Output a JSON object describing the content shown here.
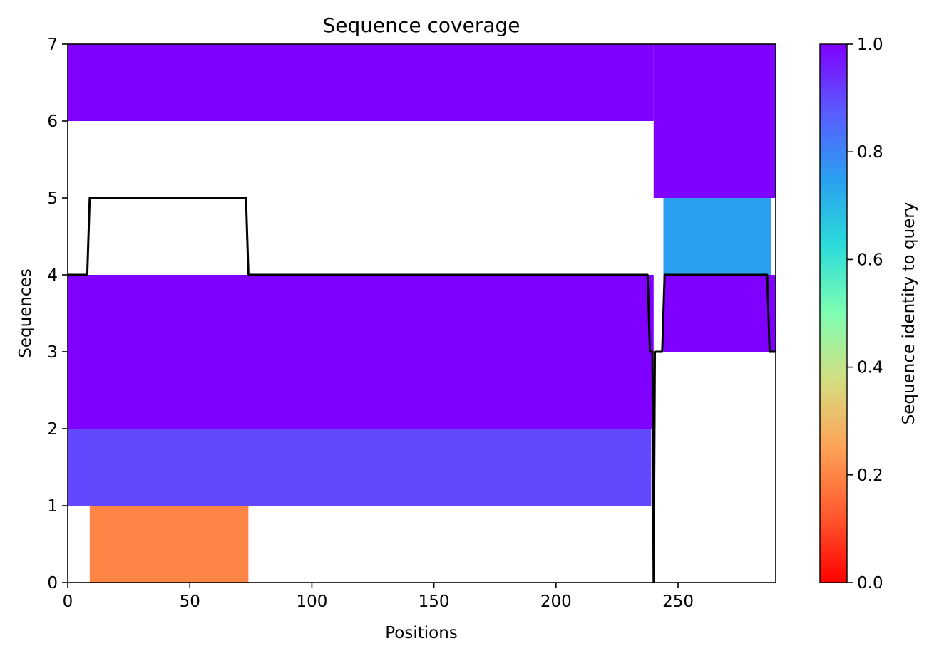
{
  "chart_data": {
    "type": "heatmap",
    "title": "Sequence coverage",
    "xlabel": "Positions",
    "ylabel": "Sequences",
    "xlim": [
      0,
      290
    ],
    "ylim": [
      0,
      7
    ],
    "xticks": [
      "0",
      "50",
      "100",
      "150",
      "200",
      "250"
    ],
    "xtick_values": [
      0,
      50,
      100,
      150,
      200,
      250
    ],
    "yticks": [
      "0",
      "1",
      "2",
      "3",
      "4",
      "5",
      "6",
      "7"
    ],
    "ytick_values": [
      0,
      1,
      2,
      3,
      4,
      5,
      6,
      7
    ],
    "colorbar": {
      "label": "Sequence identity to query",
      "colormap": "rainbow",
      "range": [
        0,
        1
      ],
      "ticks": [
        "0.0",
        "0.2",
        "0.4",
        "0.6",
        "0.8",
        "1.0"
      ],
      "tick_values": [
        0,
        0.2,
        0.4,
        0.6,
        0.8,
        1.0
      ]
    },
    "alignment_blocks": [
      {
        "sequence": 0,
        "start": 9,
        "end": 74,
        "identity": 0.2
      },
      {
        "sequence": 1,
        "start": 0,
        "end": 239,
        "identity": 0.9
      },
      {
        "sequence": 2,
        "start": 0,
        "end": 240,
        "identity": 1.0
      },
      {
        "sequence": 3,
        "start": 0,
        "end": 240,
        "identity": 1.0
      },
      {
        "sequence": 3,
        "start": 244,
        "end": 290,
        "identity": 1.0
      },
      {
        "sequence": 4,
        "start": 244,
        "end": 288,
        "identity": 0.75
      },
      {
        "sequence": 5,
        "start": 240,
        "end": 290,
        "identity": 1.0
      },
      {
        "sequence": 6,
        "start": 0,
        "end": 240,
        "identity": 1.0
      },
      {
        "sequence": 6,
        "start": 240,
        "end": 290,
        "identity": 1.0
      }
    ],
    "coverage_line": {
      "color": "#000000",
      "x": [
        0,
        8,
        9,
        73,
        74,
        237.5,
        238.5,
        239.5,
        240,
        240.5,
        241.5,
        243.5,
        244.5,
        286.5,
        287.5,
        290
      ],
      "y": [
        4,
        4,
        5,
        5,
        4,
        4,
        3,
        3,
        0,
        3,
        3,
        3,
        4,
        4,
        3,
        3
      ]
    },
    "grid": false
  }
}
